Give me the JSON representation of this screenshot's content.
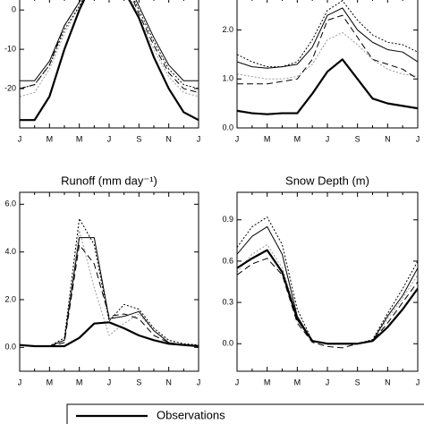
{
  "chart_data": [
    {
      "type": "line",
      "categories": [
        "J",
        null,
        "M",
        null,
        "M",
        null,
        "J",
        null,
        "S",
        null,
        "N",
        null,
        "J"
      ],
      "ylim": [
        -30,
        3
      ],
      "yticks": [
        0,
        -10,
        -20
      ],
      "series": [
        {
          "name": "Observations",
          "color": "#000000",
          "style": "solid",
          "linewidth": 2.2,
          "values": [
            -28,
            -28,
            -22,
            -10,
            0,
            8,
            10,
            5,
            -2,
            -12,
            -20,
            -26,
            -28
          ]
        },
        {
          "color": "#000000",
          "style": "solid",
          "linewidth": 1,
          "values": [
            -18,
            -18,
            -13,
            -4,
            2,
            8,
            11,
            9,
            1,
            -7,
            -14,
            -18,
            -18
          ]
        },
        {
          "color": "#000000",
          "style": "dotted",
          "linewidth": 1,
          "values": [
            -20,
            -19,
            -14,
            -5,
            1,
            8,
            11,
            8,
            0,
            -8,
            -15,
            -19,
            -20
          ]
        },
        {
          "color": "#000000",
          "style": "dashed",
          "linewidth": 1,
          "values": [
            -20,
            -19,
            -14,
            -4,
            2,
            9,
            12,
            8,
            -1,
            -9,
            -16,
            -20,
            -21
          ]
        },
        {
          "color": "#999999",
          "style": "dotted",
          "linewidth": 1,
          "values": [
            -22,
            -21,
            -15,
            -6,
            1,
            8,
            10,
            7,
            -2,
            -10,
            -17,
            -21,
            -22
          ]
        }
      ]
    },
    {
      "type": "line",
      "categories": [
        "J",
        null,
        "M",
        null,
        "M",
        null,
        "J",
        null,
        "S",
        null,
        "N",
        null,
        "J"
      ],
      "ylim": [
        0,
        2.65
      ],
      "yticks": [
        {
          "value": 0,
          "label": "0.0"
        },
        {
          "value": 1,
          "label": "1.0"
        },
        {
          "value": 2,
          "label": "2.0"
        }
      ],
      "series": [
        {
          "name": "Observations",
          "color": "#000000",
          "style": "solid",
          "linewidth": 2.2,
          "values": [
            0.35,
            0.3,
            0.28,
            0.3,
            0.3,
            0.7,
            1.15,
            1.4,
            1.0,
            0.6,
            0.5,
            0.45,
            0.4
          ]
        },
        {
          "color": "#000000",
          "style": "solid",
          "linewidth": 1,
          "values": [
            1.35,
            1.25,
            1.22,
            1.25,
            1.3,
            1.65,
            2.3,
            2.45,
            2.0,
            1.75,
            1.6,
            1.55,
            1.35
          ]
        },
        {
          "color": "#000000",
          "style": "dotted",
          "linewidth": 1,
          "values": [
            1.5,
            1.35,
            1.25,
            1.25,
            1.35,
            1.8,
            2.4,
            2.6,
            2.2,
            1.9,
            1.75,
            1.7,
            1.55
          ]
        },
        {
          "color": "#000000",
          "style": "dashed",
          "linewidth": 1,
          "values": [
            0.9,
            0.9,
            0.9,
            0.95,
            1.0,
            1.4,
            2.2,
            2.3,
            1.85,
            1.4,
            1.3,
            1.2,
            1.0
          ]
        },
        {
          "color": "#999999",
          "style": "dotted",
          "linewidth": 1,
          "values": [
            1.1,
            1.05,
            1.0,
            1.0,
            1.05,
            1.3,
            1.8,
            1.95,
            1.7,
            1.4,
            1.2,
            1.1,
            1.05
          ]
        }
      ]
    },
    {
      "type": "line",
      "title": "Runoff (mm day⁻¹)",
      "categories": [
        "J",
        null,
        "M",
        null,
        "M",
        null,
        "J",
        null,
        "S",
        null,
        "N",
        null,
        "J"
      ],
      "ylim": [
        -1,
        6.5
      ],
      "yticks": [
        {
          "value": 0,
          "label": "0.0"
        },
        {
          "value": 2,
          "label": "2.0"
        },
        {
          "value": 4,
          "label": "4.0"
        },
        {
          "value": 6,
          "label": "6.0"
        }
      ],
      "series": [
        {
          "name": "Observations",
          "color": "#000000",
          "style": "solid",
          "linewidth": 2.2,
          "values": [
            0.1,
            0.05,
            0.05,
            0.05,
            0.4,
            1.0,
            1.05,
            0.8,
            0.5,
            0.3,
            0.15,
            0.1,
            0.05
          ]
        },
        {
          "color": "#000000",
          "style": "solid",
          "linewidth": 1,
          "values": [
            0.1,
            0.05,
            0.05,
            0.3,
            4.6,
            4.6,
            1.2,
            1.3,
            1.5,
            0.7,
            0.2,
            0.1,
            0.05
          ]
        },
        {
          "color": "#000000",
          "style": "dotted",
          "linewidth": 1,
          "values": [
            0.1,
            0.05,
            0.05,
            0.4,
            5.4,
            4.3,
            1.1,
            1.8,
            1.6,
            0.8,
            0.3,
            0.15,
            0.1
          ]
        },
        {
          "color": "#000000",
          "style": "dashed",
          "linewidth": 1,
          "values": [
            0.1,
            0.05,
            0.05,
            0.2,
            4.3,
            3.5,
            1.3,
            1.4,
            1.2,
            0.5,
            0.2,
            0.1,
            0.05
          ]
        },
        {
          "color": "#999999",
          "style": "dotted",
          "linewidth": 1,
          "values": [
            0.1,
            0.05,
            0.05,
            0.3,
            4.9,
            2.5,
            0.5,
            1.0,
            1.4,
            0.7,
            0.3,
            0.15,
            0.1
          ]
        }
      ]
    },
    {
      "type": "line",
      "title": "Snow Depth (m)",
      "categories": [
        "J",
        null,
        "M",
        null,
        "M",
        null,
        "J",
        null,
        "S",
        null,
        "N",
        null,
        "J"
      ],
      "ylim": [
        -0.2,
        1.1
      ],
      "yticks": [
        {
          "value": 0,
          "label": "0.0"
        },
        0.3,
        0.6,
        0.9
      ],
      "series": [
        {
          "name": "Observations",
          "color": "#000000",
          "style": "solid",
          "linewidth": 2.2,
          "values": [
            0.55,
            0.62,
            0.68,
            0.52,
            0.18,
            0.02,
            0,
            0,
            0,
            0.02,
            0.12,
            0.25,
            0.4
          ]
        },
        {
          "color": "#000000",
          "style": "solid",
          "linewidth": 1,
          "values": [
            0.65,
            0.78,
            0.85,
            0.65,
            0.2,
            0.02,
            0,
            0,
            0,
            0.02,
            0.2,
            0.35,
            0.55
          ]
        },
        {
          "color": "#000000",
          "style": "dotted",
          "linewidth": 1,
          "values": [
            0.7,
            0.85,
            0.92,
            0.72,
            0.25,
            0.02,
            0,
            0,
            0,
            0.03,
            0.22,
            0.4,
            0.6
          ]
        },
        {
          "color": "#000000",
          "style": "dashed",
          "linewidth": 1,
          "values": [
            0.5,
            0.58,
            0.62,
            0.5,
            0.15,
            0.01,
            -0.02,
            -0.03,
            0,
            0.02,
            0.15,
            0.3,
            0.45
          ]
        },
        {
          "color": "#999999",
          "style": "dotted",
          "linewidth": 1,
          "values": [
            0.52,
            0.65,
            0.72,
            0.55,
            0.2,
            0.02,
            0,
            0,
            0,
            0.02,
            0.18,
            0.33,
            0.5
          ]
        }
      ]
    }
  ]
}
